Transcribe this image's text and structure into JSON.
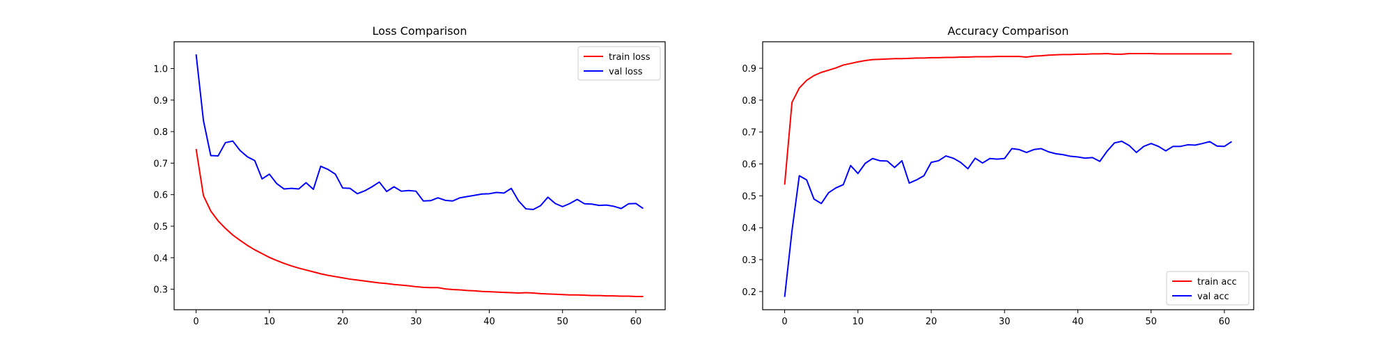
{
  "chart_data": [
    {
      "type": "line",
      "title": "Loss Comparison",
      "xlabel": "",
      "ylabel": "",
      "xlim": [
        -3,
        64
      ],
      "ylim": [
        0.235,
        1.085
      ],
      "xticks": [
        0,
        10,
        20,
        30,
        40,
        50,
        60
      ],
      "yticks": [
        0.3,
        0.4,
        0.5,
        0.6,
        0.7,
        0.8,
        0.9,
        1.0
      ],
      "ytick_labels": [
        "0.3",
        "0.4",
        "0.5",
        "0.6",
        "0.7",
        "0.8",
        "0.9",
        "1.0"
      ],
      "grid": false,
      "legend_position": "upper right",
      "series": [
        {
          "name": "train loss",
          "color": "#ff0000",
          "values": [
            0.745,
            0.597,
            0.548,
            0.517,
            0.493,
            0.472,
            0.455,
            0.439,
            0.425,
            0.413,
            0.401,
            0.391,
            0.382,
            0.374,
            0.367,
            0.361,
            0.355,
            0.349,
            0.344,
            0.34,
            0.336,
            0.332,
            0.329,
            0.326,
            0.323,
            0.32,
            0.318,
            0.315,
            0.313,
            0.311,
            0.308,
            0.306,
            0.305,
            0.305,
            0.301,
            0.299,
            0.298,
            0.296,
            0.295,
            0.293,
            0.292,
            0.291,
            0.29,
            0.289,
            0.288,
            0.289,
            0.288,
            0.286,
            0.285,
            0.284,
            0.283,
            0.282,
            0.282,
            0.281,
            0.28,
            0.28,
            0.279,
            0.279,
            0.278,
            0.278,
            0.277,
            0.277
          ]
        },
        {
          "name": "val loss",
          "color": "#0000ff",
          "values": [
            1.045,
            0.835,
            0.724,
            0.723,
            0.765,
            0.77,
            0.74,
            0.72,
            0.708,
            0.65,
            0.665,
            0.635,
            0.618,
            0.62,
            0.618,
            0.638,
            0.617,
            0.69,
            0.68,
            0.665,
            0.621,
            0.62,
            0.603,
            0.612,
            0.625,
            0.64,
            0.61,
            0.625,
            0.611,
            0.613,
            0.611,
            0.58,
            0.581,
            0.59,
            0.582,
            0.58,
            0.59,
            0.594,
            0.598,
            0.602,
            0.603,
            0.607,
            0.605,
            0.62,
            0.58,
            0.555,
            0.553,
            0.565,
            0.592,
            0.572,
            0.562,
            0.572,
            0.585,
            0.571,
            0.57,
            0.566,
            0.567,
            0.563,
            0.556,
            0.571,
            0.572,
            0.556
          ]
        }
      ]
    },
    {
      "type": "line",
      "title": "Accuracy Comparison",
      "xlabel": "",
      "ylabel": "",
      "xlim": [
        -3,
        64
      ],
      "ylim": [
        0.143,
        0.983
      ],
      "xticks": [
        0,
        10,
        20,
        30,
        40,
        50,
        60
      ],
      "yticks": [
        0.2,
        0.3,
        0.4,
        0.5,
        0.6,
        0.7,
        0.8,
        0.9
      ],
      "ytick_labels": [
        "0.2",
        "0.3",
        "0.4",
        "0.5",
        "0.6",
        "0.7",
        "0.8",
        "0.9"
      ],
      "grid": false,
      "legend_position": "lower right",
      "series": [
        {
          "name": "train acc",
          "color": "#ff0000",
          "values": [
            0.535,
            0.793,
            0.838,
            0.862,
            0.877,
            0.887,
            0.894,
            0.901,
            0.91,
            0.915,
            0.92,
            0.924,
            0.927,
            0.928,
            0.929,
            0.93,
            0.93,
            0.931,
            0.932,
            0.932,
            0.933,
            0.933,
            0.934,
            0.934,
            0.935,
            0.935,
            0.936,
            0.936,
            0.936,
            0.937,
            0.937,
            0.937,
            0.937,
            0.935,
            0.938,
            0.939,
            0.941,
            0.942,
            0.943,
            0.943,
            0.944,
            0.944,
            0.945,
            0.945,
            0.946,
            0.944,
            0.944,
            0.946,
            0.946,
            0.946,
            0.946,
            0.945,
            0.945,
            0.945,
            0.945,
            0.945,
            0.945,
            0.945,
            0.945,
            0.945,
            0.945,
            0.945
          ]
        },
        {
          "name": "val acc",
          "color": "#0000ff",
          "values": [
            0.183,
            0.39,
            0.563,
            0.55,
            0.49,
            0.476,
            0.51,
            0.525,
            0.535,
            0.595,
            0.57,
            0.602,
            0.617,
            0.61,
            0.609,
            0.589,
            0.61,
            0.54,
            0.55,
            0.563,
            0.605,
            0.61,
            0.625,
            0.618,
            0.605,
            0.585,
            0.618,
            0.603,
            0.617,
            0.615,
            0.617,
            0.648,
            0.645,
            0.636,
            0.645,
            0.648,
            0.638,
            0.632,
            0.629,
            0.624,
            0.622,
            0.618,
            0.62,
            0.608,
            0.64,
            0.666,
            0.671,
            0.658,
            0.636,
            0.655,
            0.664,
            0.655,
            0.641,
            0.655,
            0.655,
            0.66,
            0.659,
            0.664,
            0.67,
            0.656,
            0.655,
            0.67
          ]
        }
      ]
    }
  ]
}
